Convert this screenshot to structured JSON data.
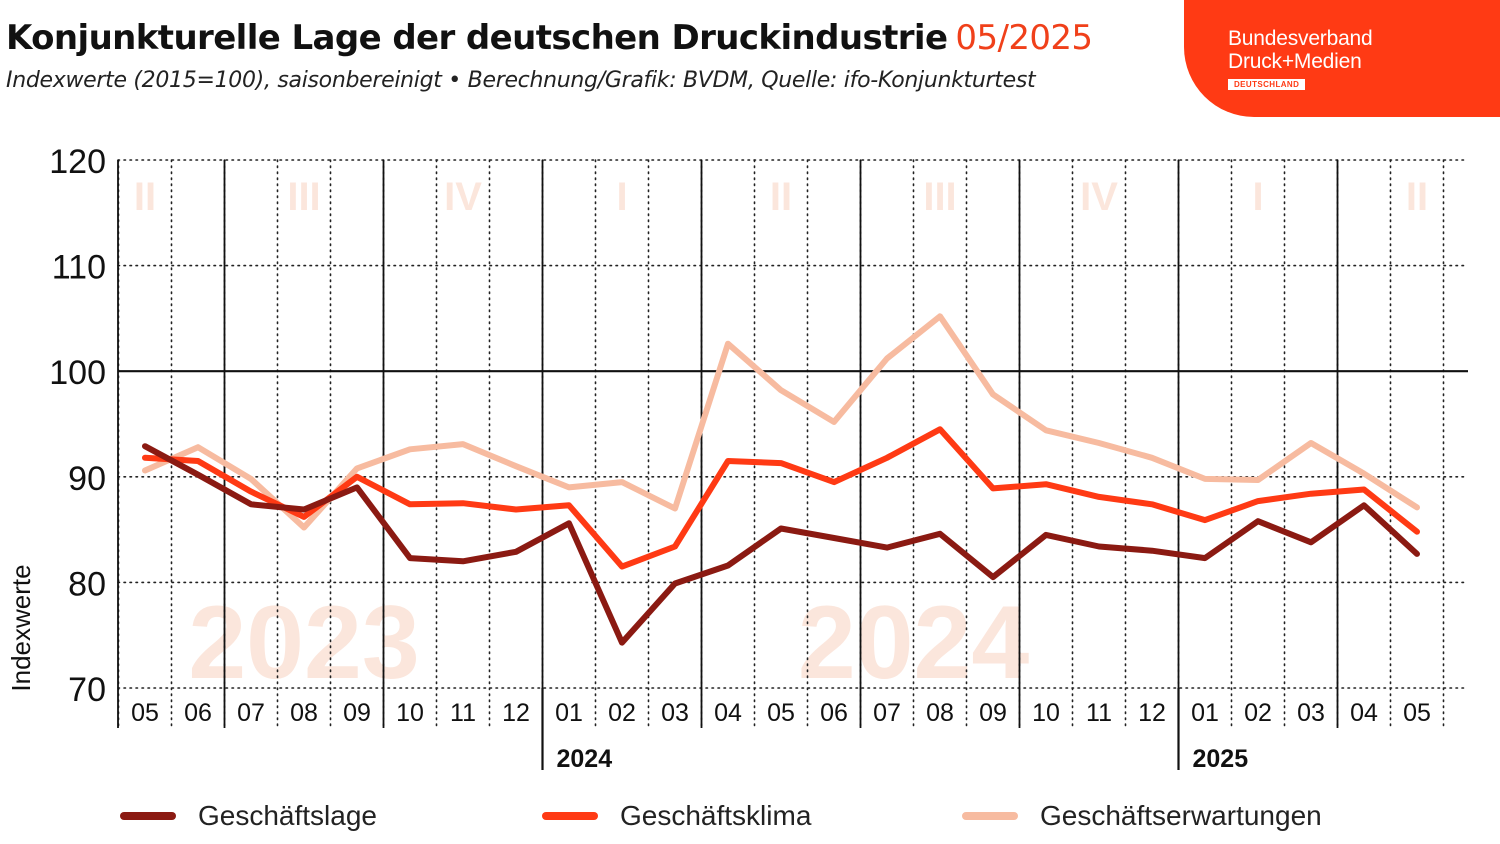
{
  "header": {
    "title": "Konjunkturelle Lage der deutschen Druckindustrie",
    "title_date": "05/2025",
    "subtitle": "Indexwerte (2015=100), saisonbereinigt • Berechnung/Grafik: BVDM, Quelle: ifo-Konjunkturtest"
  },
  "logo": {
    "line1": "Bundesverband",
    "line2": "Druck+Medien",
    "line3": "DEUTSCHLAND"
  },
  "colors": {
    "geschaeftslage": "#8b1a12",
    "geschaeftsklima": "#ff3a14",
    "geschaeftserwartungen": "#f7bba0",
    "watermark": "#fbe6dc"
  },
  "chart_data": {
    "type": "line",
    "ylabel": "Indexwerte",
    "ylim": [
      70,
      120
    ],
    "yticks": [
      70,
      80,
      90,
      100,
      110,
      120
    ],
    "grid": true,
    "legend_position": "bottom",
    "categories": [
      "05",
      "06",
      "07",
      "08",
      "09",
      "10",
      "11",
      "12",
      "01",
      "02",
      "03",
      "04",
      "05",
      "06",
      "07",
      "08",
      "09",
      "10",
      "11",
      "12",
      "01",
      "02",
      "03",
      "04",
      "05"
    ],
    "year_labels": [
      {
        "label": "2024",
        "index": 8
      },
      {
        "label": "2025",
        "index": 20
      }
    ],
    "quarter_labels": [
      {
        "label": "II",
        "index": 0
      },
      {
        "label": "III",
        "index": 3
      },
      {
        "label": "IV",
        "index": 6
      },
      {
        "label": "I",
        "index": 9
      },
      {
        "label": "II",
        "index": 12
      },
      {
        "label": "III",
        "index": 15
      },
      {
        "label": "IV",
        "index": 18
      },
      {
        "label": "I",
        "index": 21
      },
      {
        "label": "II",
        "index": 24
      }
    ],
    "year_watermarks": [
      {
        "label": "2023",
        "index": 3
      },
      {
        "label": "2024",
        "index": 14.5
      }
    ],
    "series": [
      {
        "name": "Geschäftslage",
        "color_key": "geschaeftslage",
        "values": [
          92.9,
          90.2,
          87.4,
          86.9,
          89.0,
          82.3,
          82.0,
          82.9,
          85.6,
          74.3,
          79.9,
          81.6,
          85.1,
          84.2,
          83.3,
          84.6,
          80.5,
          84.5,
          83.4,
          83.0,
          82.3,
          85.8,
          83.8,
          87.3,
          82.7
        ]
      },
      {
        "name": "Geschäftsklima",
        "color_key": "geschaeftsklima",
        "values": [
          91.8,
          91.5,
          88.6,
          86.2,
          90.0,
          87.4,
          87.5,
          86.9,
          87.3,
          81.5,
          83.4,
          91.5,
          91.3,
          89.5,
          91.8,
          94.5,
          88.9,
          89.3,
          88.1,
          87.4,
          85.9,
          87.7,
          88.4,
          88.8,
          84.8
        ]
      },
      {
        "name": "Geschäftserwartungen",
        "color_key": "geschaeftserwartungen",
        "values": [
          90.6,
          92.8,
          89.8,
          85.2,
          90.8,
          92.6,
          93.1,
          91.0,
          89.0,
          89.5,
          87.0,
          102.6,
          98.2,
          95.2,
          101.2,
          105.2,
          97.8,
          94.4,
          93.2,
          91.8,
          89.8,
          89.7,
          93.2,
          90.3,
          87.1
        ]
      }
    ]
  }
}
